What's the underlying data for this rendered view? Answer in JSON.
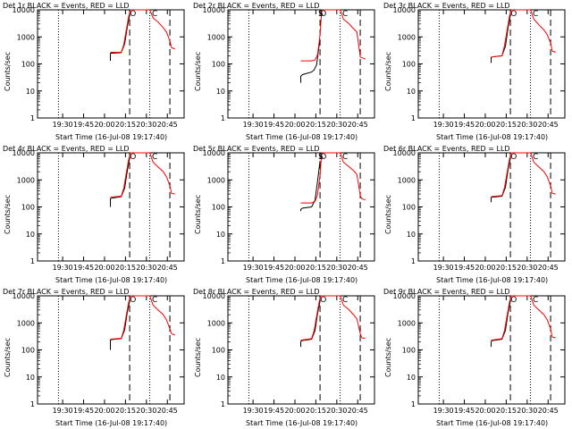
{
  "figure": {
    "x_label": "Start Time (16-Jul-08 19:17:40)",
    "y_label": "Counts/sec",
    "x_ticks": [
      "19:30",
      "19:45",
      "20:00",
      "20:15",
      "20:30",
      "20:45"
    ],
    "y_ticks": [
      "1",
      "10",
      "100",
      "1000",
      "10000"
    ],
    "colors": {
      "events": "#000000",
      "lld": "#ff0000",
      "axes": "#000000"
    }
  },
  "chart_data": [
    {
      "type": "line",
      "title": "Det 1r BLACK = Events, RED = LLD",
      "xlabel": "Start Time (16-Jul-08 19:17:40)",
      "ylabel": "Counts/sec",
      "xlim": [
        19.2,
        20.95
      ],
      "ylim": [
        1,
        10000
      ],
      "yscale": "log",
      "vlines": [
        {
          "x": 19.45,
          "style": "dotted"
        },
        {
          "x": 20.3,
          "style": "dashed"
        },
        {
          "x": 20.54,
          "style": "dotted"
        },
        {
          "x": 20.78,
          "style": "dashed"
        }
      ],
      "annotations": [
        "O",
        "C"
      ],
      "series": [
        {
          "name": "Events",
          "color": "#000000",
          "x": [
            20.07,
            20.07,
            20.08,
            20.2,
            20.24,
            20.27,
            20.3
          ],
          "y": [
            130,
            240,
            250,
            260,
            560,
            2200,
            6500
          ]
        },
        {
          "name": "LLD",
          "color": "#ff0000",
          "x": [
            20.07,
            20.2,
            20.23,
            20.26,
            20.29,
            20.31,
            20.33,
            20.54,
            20.58,
            20.64,
            20.7,
            20.74,
            20.78,
            20.8,
            20.82,
            20.84
          ],
          "y": [
            270,
            270,
            520,
            1800,
            6000,
            12000,
            12000,
            12000,
            5000,
            3500,
            2200,
            1500,
            700,
            400,
            380,
            350
          ]
        }
      ]
    },
    {
      "type": "line",
      "title": "Det 2r BLACK = Events, RED = LLD",
      "xlabel": "Start Time (16-Jul-08 19:17:40)",
      "ylabel": "Counts/sec",
      "xlim": [
        19.2,
        20.95
      ],
      "ylim": [
        1,
        10000
      ],
      "yscale": "log",
      "vlines": [
        {
          "x": 19.45,
          "style": "dotted"
        },
        {
          "x": 20.3,
          "style": "dashed"
        },
        {
          "x": 20.54,
          "style": "dotted"
        },
        {
          "x": 20.78,
          "style": "dashed"
        }
      ],
      "annotations": [
        "S",
        "O",
        "C"
      ],
      "series": [
        {
          "name": "Events",
          "color": "#000000",
          "x": [
            20.07,
            20.07,
            20.09,
            20.2,
            20.23,
            20.26,
            20.29,
            20.3
          ],
          "y": [
            20,
            35,
            40,
            50,
            60,
            95,
            500,
            800
          ]
        },
        {
          "name": "LLD",
          "color": "#ff0000",
          "x": [
            20.07,
            20.2,
            20.24,
            20.27,
            20.3,
            20.32,
            20.54,
            20.58,
            20.64,
            20.7,
            20.74,
            20.78,
            20.82,
            20.84
          ],
          "y": [
            130,
            130,
            140,
            220,
            1200,
            12000,
            12000,
            4500,
            3200,
            2000,
            1500,
            180,
            160,
            150
          ]
        }
      ]
    },
    {
      "type": "line",
      "title": "Det 3r BLACK = Events, RED = LLD",
      "xlabel": "Start Time (16-Jul-08 19:17:40)",
      "ylabel": "Counts/sec",
      "xlim": [
        19.2,
        20.95
      ],
      "ylim": [
        1,
        10000
      ],
      "yscale": "log",
      "vlines": [
        {
          "x": 19.45,
          "style": "dotted"
        },
        {
          "x": 20.3,
          "style": "dashed"
        },
        {
          "x": 20.54,
          "style": "dotted"
        },
        {
          "x": 20.78,
          "style": "dashed"
        }
      ],
      "annotations": [
        "O",
        "C"
      ],
      "series": [
        {
          "name": "Events",
          "color": "#000000",
          "x": [
            20.07,
            20.07,
            20.08,
            20.2,
            20.24,
            20.27,
            20.3
          ],
          "y": [
            110,
            170,
            180,
            200,
            450,
            2000,
            6500
          ]
        },
        {
          "name": "LLD",
          "color": "#ff0000",
          "x": [
            20.07,
            20.2,
            20.23,
            20.26,
            20.29,
            20.31,
            20.54,
            20.58,
            20.64,
            20.7,
            20.74,
            20.78,
            20.8,
            20.84
          ],
          "y": [
            180,
            200,
            480,
            1700,
            6000,
            12000,
            12000,
            4500,
            2800,
            1800,
            1200,
            600,
            300,
            270
          ]
        }
      ]
    },
    {
      "type": "line",
      "title": "Det 4r BLACK = Events, RED = LLD",
      "xlabel": "Start Time (16-Jul-08 19:17:40)",
      "ylabel": "Counts/sec",
      "xlim": [
        19.2,
        20.95
      ],
      "ylim": [
        1,
        10000
      ],
      "yscale": "log",
      "vlines": [
        {
          "x": 19.45,
          "style": "dotted"
        },
        {
          "x": 20.3,
          "style": "dashed"
        },
        {
          "x": 20.54,
          "style": "dotted"
        },
        {
          "x": 20.78,
          "style": "dashed"
        }
      ],
      "annotations": [
        "O",
        "C"
      ],
      "series": [
        {
          "name": "Events",
          "color": "#000000",
          "x": [
            20.07,
            20.07,
            20.08,
            20.2,
            20.24,
            20.27,
            20.3
          ],
          "y": [
            100,
            200,
            210,
            240,
            500,
            2000,
            6500
          ]
        },
        {
          "name": "LLD",
          "color": "#ff0000",
          "x": [
            20.07,
            20.2,
            20.23,
            20.26,
            20.29,
            20.31,
            20.54,
            20.58,
            20.64,
            20.7,
            20.74,
            20.78,
            20.8,
            20.84
          ],
          "y": [
            230,
            250,
            500,
            1800,
            6000,
            12000,
            12000,
            4500,
            3000,
            2000,
            1300,
            600,
            320,
            300
          ]
        }
      ]
    },
    {
      "type": "line",
      "title": "Det 5r BLACK = Events, RED = LLD",
      "xlabel": "Start Time (16-Jul-08 19:17:40)",
      "ylabel": "Counts/sec",
      "xlim": [
        19.2,
        20.95
      ],
      "ylim": [
        1,
        10000
      ],
      "yscale": "log",
      "vlines": [
        {
          "x": 19.45,
          "style": "dotted"
        },
        {
          "x": 20.3,
          "style": "dashed"
        },
        {
          "x": 20.54,
          "style": "dotted"
        },
        {
          "x": 20.78,
          "style": "dashed"
        }
      ],
      "annotations": [
        "S",
        "O",
        "C"
      ],
      "series": [
        {
          "name": "Events",
          "color": "#000000",
          "x": [
            20.07,
            20.07,
            20.09,
            20.2,
            20.24,
            20.27,
            20.3
          ],
          "y": [
            70,
            80,
            90,
            100,
            180,
            900,
            5000
          ]
        },
        {
          "name": "LLD",
          "color": "#ff0000",
          "x": [
            20.07,
            20.2,
            20.24,
            20.27,
            20.3,
            20.32,
            20.54,
            20.58,
            20.64,
            20.7,
            20.74,
            20.78,
            20.8,
            20.84
          ],
          "y": [
            140,
            140,
            160,
            280,
            1500,
            12000,
            12000,
            4500,
            3200,
            2200,
            1600,
            260,
            200,
            180
          ]
        }
      ]
    },
    {
      "type": "line",
      "title": "Det 6r BLACK = Events, RED = LLD",
      "xlabel": "Start Time (16-Jul-08 19:17:40)",
      "ylabel": "Counts/sec",
      "xlim": [
        19.2,
        20.95
      ],
      "ylim": [
        1,
        10000
      ],
      "yscale": "log",
      "vlines": [
        {
          "x": 19.45,
          "style": "dotted"
        },
        {
          "x": 20.3,
          "style": "dashed"
        },
        {
          "x": 20.54,
          "style": "dotted"
        },
        {
          "x": 20.78,
          "style": "dashed"
        }
      ],
      "annotations": [
        "O",
        "C"
      ],
      "series": [
        {
          "name": "Events",
          "color": "#000000",
          "x": [
            20.07,
            20.07,
            20.08,
            20.2,
            20.24,
            20.27,
            20.3
          ],
          "y": [
            150,
            220,
            230,
            250,
            520,
            2200,
            6500
          ]
        },
        {
          "name": "LLD",
          "color": "#ff0000",
          "x": [
            20.07,
            20.2,
            20.23,
            20.26,
            20.29,
            20.31,
            20.54,
            20.58,
            20.64,
            20.7,
            20.74,
            20.78,
            20.8,
            20.84
          ],
          "y": [
            240,
            260,
            520,
            1800,
            6000,
            12000,
            12000,
            4500,
            3000,
            2000,
            1300,
            600,
            320,
            300
          ]
        }
      ]
    },
    {
      "type": "line",
      "title": "Det 7r BLACK = Events, RED = LLD",
      "xlabel": "Start Time (16-Jul-08 19:17:40)",
      "ylabel": "Counts/sec",
      "xlim": [
        19.2,
        20.95
      ],
      "ylim": [
        1,
        10000
      ],
      "yscale": "log",
      "vlines": [
        {
          "x": 19.45,
          "style": "dotted"
        },
        {
          "x": 20.3,
          "style": "dashed"
        },
        {
          "x": 20.54,
          "style": "dotted"
        },
        {
          "x": 20.78,
          "style": "dashed"
        }
      ],
      "annotations": [
        "O",
        "C"
      ],
      "series": [
        {
          "name": "Events",
          "color": "#000000",
          "x": [
            20.07,
            20.07,
            20.08,
            20.2,
            20.24,
            20.27,
            20.3
          ],
          "y": [
            100,
            230,
            240,
            260,
            560,
            2300,
            6500
          ]
        },
        {
          "name": "LLD",
          "color": "#ff0000",
          "x": [
            20.07,
            20.2,
            20.23,
            20.26,
            20.29,
            20.31,
            20.54,
            20.58,
            20.64,
            20.7,
            20.74,
            20.78,
            20.8,
            20.84
          ],
          "y": [
            250,
            270,
            540,
            1900,
            6000,
            12000,
            12000,
            4500,
            3000,
            2000,
            1300,
            600,
            400,
            350
          ]
        }
      ]
    },
    {
      "type": "line",
      "title": "Det 8r BLACK = Events, RED = LLD",
      "xlabel": "Start Time (16-Jul-08 19:17:40)",
      "ylabel": "Counts/sec",
      "xlim": [
        19.2,
        20.95
      ],
      "ylim": [
        1,
        10000
      ],
      "yscale": "log",
      "vlines": [
        {
          "x": 19.45,
          "style": "dotted"
        },
        {
          "x": 20.3,
          "style": "dashed"
        },
        {
          "x": 20.54,
          "style": "dotted"
        },
        {
          "x": 20.78,
          "style": "dashed"
        }
      ],
      "annotations": [
        "O",
        "C"
      ],
      "series": [
        {
          "name": "Events",
          "color": "#000000",
          "x": [
            20.07,
            20.07,
            20.08,
            20.2,
            20.24,
            20.27,
            20.3
          ],
          "y": [
            130,
            200,
            220,
            250,
            520,
            2200,
            6500
          ]
        },
        {
          "name": "LLD",
          "color": "#ff0000",
          "x": [
            20.07,
            20.2,
            20.23,
            20.26,
            20.29,
            20.31,
            20.54,
            20.58,
            20.64,
            20.7,
            20.74,
            20.78,
            20.8,
            20.84
          ],
          "y": [
            230,
            260,
            520,
            1800,
            6000,
            12000,
            12000,
            4500,
            3200,
            2000,
            1400,
            400,
            280,
            270
          ]
        }
      ]
    },
    {
      "type": "line",
      "title": "Det 9r BLACK = Events, RED = LLD",
      "xlabel": "Start Time (16-Jul-08 19:17:40)",
      "ylabel": "Counts/sec",
      "xlim": [
        19.2,
        20.95
      ],
      "ylim": [
        1,
        10000
      ],
      "yscale": "log",
      "vlines": [
        {
          "x": 19.45,
          "style": "dotted"
        },
        {
          "x": 20.3,
          "style": "dashed"
        },
        {
          "x": 20.54,
          "style": "dotted"
        },
        {
          "x": 20.78,
          "style": "dashed"
        }
      ],
      "annotations": [
        "O",
        "C"
      ],
      "series": [
        {
          "name": "Events",
          "color": "#000000",
          "x": [
            20.07,
            20.07,
            20.08,
            20.2,
            20.24,
            20.27,
            20.3
          ],
          "y": [
            130,
            200,
            220,
            250,
            520,
            2200,
            6500
          ]
        },
        {
          "name": "LLD",
          "color": "#ff0000",
          "x": [
            20.07,
            20.2,
            20.23,
            20.26,
            20.29,
            20.31,
            20.54,
            20.58,
            20.64,
            20.7,
            20.74,
            20.78,
            20.8,
            20.84
          ],
          "y": [
            230,
            260,
            520,
            1800,
            6000,
            12000,
            12000,
            4500,
            3000,
            2000,
            1300,
            600,
            300,
            280
          ]
        }
      ]
    }
  ]
}
